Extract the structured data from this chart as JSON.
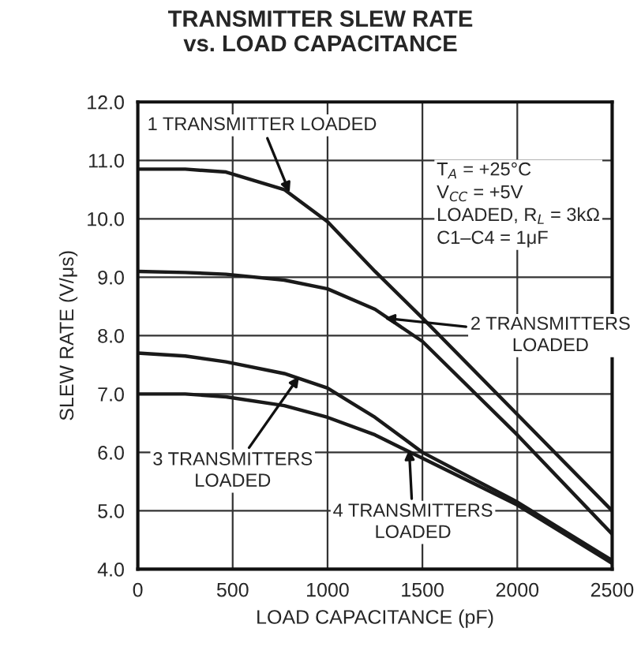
{
  "chart_data": {
    "type": "line",
    "title": "TRANSMITTER SLEW RATE\nvs. LOAD CAPACITANCE",
    "xlabel": "LOAD CAPACITANCE (pF)",
    "ylabel": "SLEW RATE (V/μs)",
    "x": [
      0,
      250,
      465,
      772,
      1000,
      1250,
      1500,
      2000,
      2500
    ],
    "series": [
      {
        "color": "#1a1a1a",
        "values": [
          10.85,
          10.85,
          10.8,
          10.5,
          9.95,
          9.1,
          8.3,
          6.65,
          5.0
        ]
      },
      {
        "color": "#1a1a1a",
        "values": [
          9.1,
          9.08,
          9.05,
          8.95,
          8.8,
          8.45,
          7.9,
          6.3,
          4.6
        ]
      },
      {
        "color": "#1a1a1a",
        "values": [
          7.7,
          7.65,
          7.55,
          7.35,
          7.1,
          6.6,
          6.0,
          5.15,
          4.15
        ]
      },
      {
        "color": "#1a1a1a",
        "values": [
          7.0,
          7.0,
          6.95,
          6.8,
          6.6,
          6.3,
          5.9,
          5.1,
          4.1
        ]
      }
    ],
    "xlim": [
      0,
      2500
    ],
    "xticks": [
      0,
      500,
      1000,
      1500,
      2000,
      2500
    ],
    "ylim": [
      4.0,
      12.0
    ],
    "yticks": [
      {
        "value": 4,
        "label": "4.0"
      },
      {
        "value": 5,
        "label": "5.0"
      },
      {
        "value": 6,
        "label": "6.0"
      },
      {
        "value": 7,
        "label": "7.0"
      },
      {
        "value": 8,
        "label": "8.0"
      },
      {
        "value": 9,
        "label": "9.0"
      },
      {
        "value": 10,
        "label": "10.0"
      },
      {
        "value": 11,
        "label": "11.0"
      },
      {
        "value": 12,
        "label": "12.0"
      }
    ],
    "grid": true,
    "marker": "none",
    "line_style": "solid",
    "annotations": [
      {
        "text": "1 TRANSMITTER LOADED",
        "x": 800,
        "y": 10.45
      },
      {
        "text": "2 TRANSMITTERS\nLOADED",
        "x": 1300,
        "y": 8.3
      },
      {
        "text": "3 TRANSMITTERS\nLOADED",
        "x": 850,
        "y": 7.3
      },
      {
        "text": "4 TRANSMITTERS\nLOADED",
        "x": 1430,
        "y": 6.05
      },
      "T$_{A}$ = +25°C\nV$_{CC}$ = +5V\nLOADED, R$_{L}$ = 3kΩ\nC1–C4 = 1μF"
    ]
  }
}
